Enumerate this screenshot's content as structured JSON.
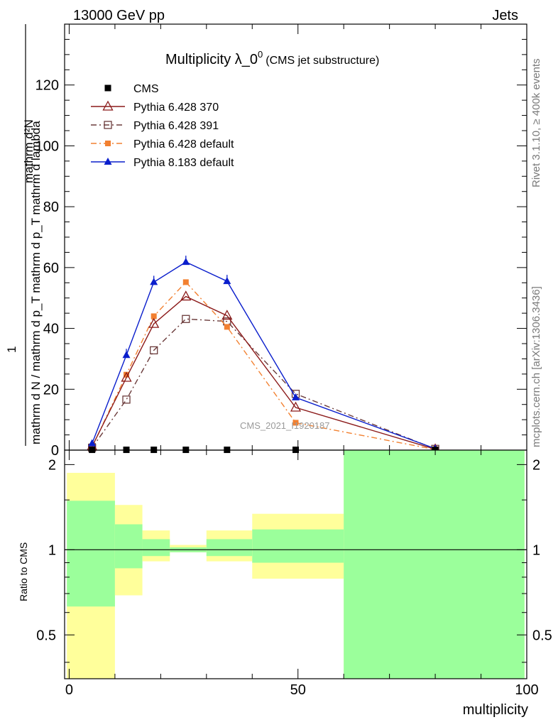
{
  "header": {
    "left": "13000 GeV pp",
    "right": "Jets"
  },
  "side_text": {
    "rivet": "Rivet 3.1.10, ≥ 400k events",
    "mcplots": "mcplots.cern.ch [arXiv:1306.3436]"
  },
  "colors": {
    "cms": "#000000",
    "py370": "#8b1a1a",
    "py391": "#6b3b3b",
    "py6def": "#f28030",
    "py8def": "#0a1ecc",
    "band_stat": "#9bff9b",
    "band_total": "#ffff9b"
  },
  "chart_data": [
    {
      "type": "line",
      "panel": "main",
      "title": "Multiplicity λ_0",
      "title_sup": "0",
      "title_note": "(CMS jet substructure)",
      "ylabel_numerator": "1",
      "ylabel_denominator": "mathrm d N / mathrm d p_T mathrm d p_T mathrm d lambda",
      "ylabel_top": "mathrm d²N",
      "ylim": [
        0,
        140
      ],
      "xlim": [
        -1,
        100
      ],
      "yticks": [
        0,
        20,
        40,
        60,
        80,
        100,
        120
      ],
      "yticklabels": [
        "0",
        "20",
        "40",
        "60",
        "80",
        "100",
        "120"
      ],
      "watermark": "CMS_2021_I1920187",
      "legend_position": "top-left",
      "series": [
        {
          "name": "CMS",
          "key": "cms",
          "marker": "filled-square",
          "style": "none",
          "x": [
            5,
            12.5,
            18.5,
            25.5,
            34.5,
            49.5,
            80
          ],
          "y": [
            0.1,
            0.1,
            0.1,
            0.1,
            0.1,
            0.1,
            0.1
          ]
        },
        {
          "name": "Pythia 6.428 370",
          "key": "py370",
          "marker": "open-triangle",
          "style": "solid",
          "x": [
            5,
            12.5,
            18.5,
            25.5,
            34.5,
            49.5,
            80
          ],
          "y": [
            1.2,
            23.8,
            41.5,
            50.5,
            44.2,
            14,
            0.3
          ]
        },
        {
          "name": "Pythia 6.428 391",
          "key": "py391",
          "marker": "open-square",
          "style": "dashdot",
          "x": [
            5,
            12.5,
            18.5,
            25.5,
            34.5,
            49.5,
            80
          ],
          "y": [
            0.8,
            16.6,
            32.8,
            43.1,
            42.3,
            18.5,
            0.4
          ]
        },
        {
          "name": "Pythia 6.428 default",
          "key": "py6def",
          "marker": "filled-square-small",
          "style": "dashdot",
          "x": [
            5,
            12.5,
            18.5,
            25.5,
            34.5,
            49.5,
            80
          ],
          "y": [
            1.0,
            24.8,
            44.0,
            55.2,
            40.5,
            9.0,
            0.2
          ]
        },
        {
          "name": "Pythia 8.183 default",
          "key": "py8def",
          "marker": "filled-triangle",
          "style": "solid",
          "x": [
            5,
            12.5,
            18.5,
            25.5,
            34.5,
            49.5,
            80
          ],
          "y": [
            2.2,
            31.2,
            55.2,
            61.8,
            55.5,
            17.3,
            0.5
          ]
        }
      ]
    },
    {
      "type": "area",
      "panel": "ratio",
      "ylabel": "Ratio to CMS",
      "xlabel": "multiplicity",
      "ylim": [
        0.35,
        2.25
      ],
      "xlim": [
        -1,
        100
      ],
      "yticks": [
        0.5,
        1,
        2
      ],
      "yticklabels": [
        "0.5",
        "1",
        "2"
      ],
      "xticks": [
        0,
        50,
        100
      ],
      "xticklabels": [
        "0",
        "50",
        "100"
      ],
      "bins": [
        {
          "x": [
            -0.5,
            10
          ],
          "total": [
            0.35,
            1.87
          ],
          "stat": [
            0.63,
            1.49
          ]
        },
        {
          "x": [
            10,
            16
          ],
          "total": [
            0.69,
            1.44
          ],
          "stat": [
            0.86,
            1.23
          ]
        },
        {
          "x": [
            16,
            22
          ],
          "total": [
            0.91,
            1.17
          ],
          "stat": [
            0.95,
            1.09
          ]
        },
        {
          "x": [
            22,
            30
          ],
          "total": [
            0.98,
            1.04
          ],
          "stat": [
            0.98,
            1.02
          ]
        },
        {
          "x": [
            30,
            40
          ],
          "total": [
            0.91,
            1.17
          ],
          "stat": [
            0.95,
            1.09
          ]
        },
        {
          "x": [
            40,
            60
          ],
          "total": [
            0.79,
            1.34
          ],
          "stat": [
            0.9,
            1.18
          ]
        },
        {
          "x": [
            60,
            99.5
          ],
          "total": [
            0.35,
            2.25
          ],
          "stat": [
            0.35,
            2.25
          ]
        }
      ]
    }
  ]
}
